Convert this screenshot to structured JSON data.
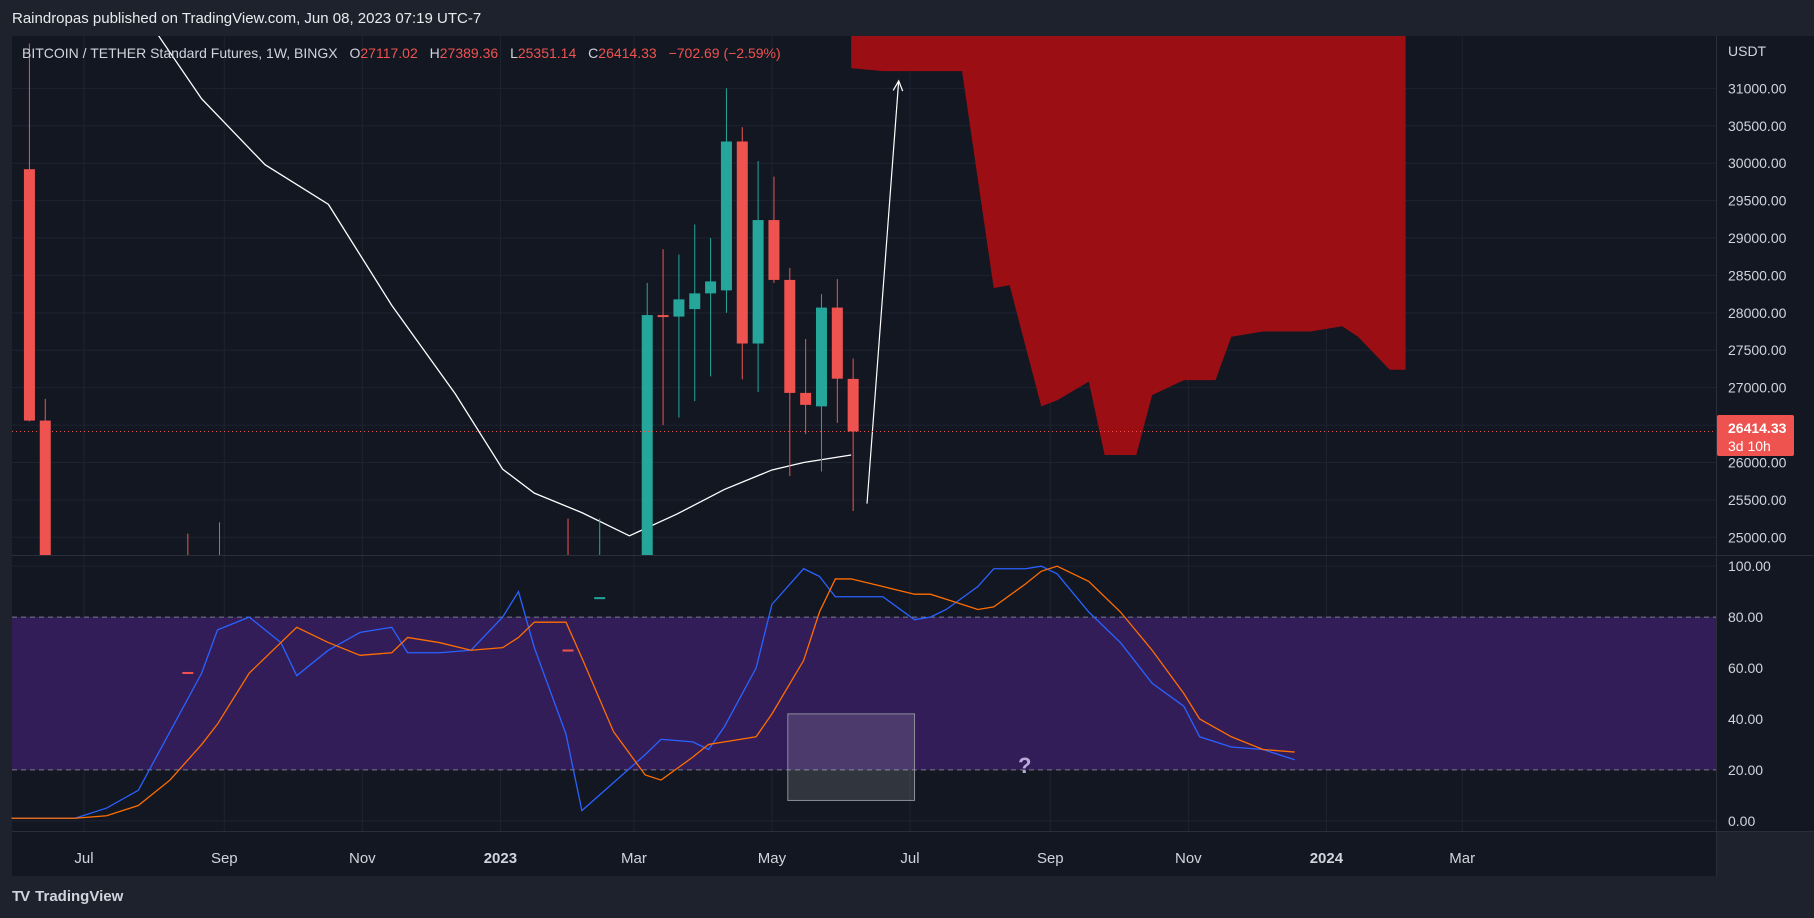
{
  "header": {
    "published": "Raindropas published on TradingView.com, Jun 08, 2023 07:19 UTC-7"
  },
  "footer": {
    "brand_logo": "TV",
    "brand": "TradingView"
  },
  "legend": {
    "symbol": "BITCOIN / TETHER Standard Futures, 1W, BINGX",
    "o_label": "O",
    "o_value": "27117.02",
    "h_label": "H",
    "h_value": "27389.36",
    "l_label": "L",
    "l_value": "25351.14",
    "c_label": "C",
    "c_value": "26414.33",
    "change": "−702.69 (−2.59%)"
  },
  "last_price": {
    "value": "26414.33",
    "countdown": "3d 10h"
  },
  "annotation": {
    "question": "?"
  },
  "colors": {
    "background": "#131722",
    "frame": "#1e222d",
    "up": "#26a69a",
    "down": "#ef5350",
    "ma": "#ffffff",
    "cloud": "#9b0e14",
    "stoch_k": "#2962ff",
    "stoch_d": "#ff6d00",
    "band_fill": "#321d58"
  },
  "chart_data": [
    {
      "type": "candlestick",
      "timeframe": "1W",
      "y_unit": "USDT",
      "ylim": [
        24750,
        31700
      ],
      "y_ticks": [
        "31000.00",
        "30500.00",
        "30000.00",
        "29500.00",
        "29000.00",
        "28500.00",
        "28000.00",
        "27500.00",
        "27000.00",
        "26500.00",
        "26000.00",
        "25500.00",
        "25000.00"
      ],
      "x_ticks": [
        "Jul",
        "Sep",
        "Nov",
        "2023",
        "Mar",
        "May",
        "Jul",
        "Sep",
        "Nov",
        "2024",
        "Mar"
      ],
      "grid": true,
      "candles": [
        {
          "date": "2022-06-06",
          "o": 29920,
          "h": 31600,
          "l": 26550,
          "c": 26560
        },
        {
          "date": "2022-06-13",
          "o": 26560,
          "h": 26850,
          "l": 17600,
          "c": 20500
        },
        {
          "date": "2022-08-15",
          "o": 23200,
          "h": 25050,
          "l": 20800,
          "c": 21400
        },
        {
          "date": "2022-08-29",
          "o": 20000,
          "h": 25200,
          "l": 19700,
          "c": 19800
        },
        {
          "date": "2023-01-30",
          "o": 23500,
          "h": 25250,
          "l": 22700,
          "c": 23000
        },
        {
          "date": "2023-02-13",
          "o": 22000,
          "h": 25250,
          "l": 21500,
          "c": 24200
        },
        {
          "date": "2023-03-06",
          "o": 22500,
          "h": 28400,
          "l": 20000,
          "c": 27970
        },
        {
          "date": "2023-03-13",
          "o": 27970,
          "h": 28850,
          "l": 26500,
          "c": 27950
        },
        {
          "date": "2023-03-20",
          "o": 27950,
          "h": 28780,
          "l": 26600,
          "c": 28180
        },
        {
          "date": "2023-03-27",
          "o": 28050,
          "h": 29180,
          "l": 26820,
          "c": 28260
        },
        {
          "date": "2023-04-03",
          "o": 28260,
          "h": 29000,
          "l": 27150,
          "c": 28420
        },
        {
          "date": "2023-04-10",
          "o": 28300,
          "h": 31000,
          "l": 28000,
          "c": 30290
        },
        {
          "date": "2023-04-17",
          "o": 30290,
          "h": 30480,
          "l": 27110,
          "c": 27590
        },
        {
          "date": "2023-04-24",
          "o": 27590,
          "h": 30030,
          "l": 26940,
          "c": 29240
        },
        {
          "date": "2023-05-01",
          "o": 29240,
          "h": 29820,
          "l": 28400,
          "c": 28440
        },
        {
          "date": "2023-05-08",
          "o": 28440,
          "h": 28600,
          "l": 25820,
          "c": 26930
        },
        {
          "date": "2023-05-15",
          "o": 26930,
          "h": 27650,
          "l": 26380,
          "c": 26770
        },
        {
          "date": "2023-05-22",
          "o": 26750,
          "h": 28250,
          "l": 25880,
          "c": 28070
        },
        {
          "date": "2023-05-29",
          "o": 28070,
          "h": 28450,
          "l": 26530,
          "c": 27120
        },
        {
          "date": "2023-06-05",
          "o": 27117.02,
          "h": 27389.36,
          "l": 25351.14,
          "c": 26414.33
        }
      ],
      "moving_average": [
        {
          "date": "2022-06-27",
          "v": 33600
        },
        {
          "date": "2022-07-25",
          "v": 32100
        },
        {
          "date": "2022-08-22",
          "v": 30860
        },
        {
          "date": "2022-09-19",
          "v": 29980
        },
        {
          "date": "2022-10-17",
          "v": 29450
        },
        {
          "date": "2022-11-14",
          "v": 28100
        },
        {
          "date": "2022-12-12",
          "v": 26920
        },
        {
          "date": "2023-01-02",
          "v": 25910
        },
        {
          "date": "2023-01-16",
          "v": 25590
        },
        {
          "date": "2023-02-06",
          "v": 25330
        },
        {
          "date": "2023-02-27",
          "v": 25020
        },
        {
          "date": "2023-03-20",
          "v": 25310
        },
        {
          "date": "2023-04-10",
          "v": 25640
        },
        {
          "date": "2023-05-01",
          "v": 25900
        },
        {
          "date": "2023-05-15",
          "v": 26000
        },
        {
          "date": "2023-06-05",
          "v": 26100
        }
      ],
      "cloud": [
        {
          "date": "2023-06-05",
          "top": 31700,
          "bottom": 31270
        },
        {
          "date": "2023-06-19",
          "top": 31700,
          "bottom": 31230
        },
        {
          "date": "2023-07-24",
          "top": 31700,
          "bottom": 31230
        },
        {
          "date": "2023-08-07",
          "top": 31700,
          "bottom": 28330
        },
        {
          "date": "2023-08-14",
          "top": 31700,
          "bottom": 28370
        },
        {
          "date": "2023-08-28",
          "top": 31700,
          "bottom": 26750
        },
        {
          "date": "2023-09-04",
          "top": 31700,
          "bottom": 26830
        },
        {
          "date": "2023-09-18",
          "top": 31700,
          "bottom": 27080
        },
        {
          "date": "2023-09-25",
          "top": 31700,
          "bottom": 26100
        },
        {
          "date": "2023-10-09",
          "top": 31700,
          "bottom": 26100
        },
        {
          "date": "2023-10-16",
          "top": 31700,
          "bottom": 26900
        },
        {
          "date": "2023-10-30",
          "top": 31700,
          "bottom": 27100
        },
        {
          "date": "2023-11-13",
          "top": 31700,
          "bottom": 27100
        },
        {
          "date": "2023-11-20",
          "top": 31700,
          "bottom": 27680
        },
        {
          "date": "2023-12-04",
          "top": 31700,
          "bottom": 27750
        },
        {
          "date": "2023-12-25",
          "top": 31700,
          "bottom": 27750
        },
        {
          "date": "2024-01-08",
          "top": 31700,
          "bottom": 27820
        },
        {
          "date": "2024-01-15",
          "top": 31700,
          "bottom": 27680
        },
        {
          "date": "2024-01-29",
          "top": 31700,
          "bottom": 27240
        },
        {
          "date": "2024-02-05",
          "top": 31700,
          "bottom": 27240
        }
      ],
      "projection_arrow": [
        {
          "date": "2023-06-12",
          "v": 25450
        },
        {
          "date": "2023-06-26",
          "v": 31100
        }
      ]
    },
    {
      "type": "line",
      "title": "",
      "ylim": [
        -4,
        104
      ],
      "y_ticks": [
        "100.00",
        "80.00",
        "60.00",
        "40.00",
        "20.00",
        "0.00"
      ],
      "band": [
        20,
        80
      ],
      "series": [
        {
          "values": [
            [
              "2022-05-30",
              1
            ],
            [
              "2022-06-27",
              1
            ],
            [
              "2022-07-11",
              5
            ],
            [
              "2022-07-25",
              12
            ],
            [
              "2022-08-08",
              35
            ],
            [
              "2022-08-22",
              58
            ],
            [
              "2022-08-29",
              75
            ],
            [
              "2022-09-12",
              80
            ],
            [
              "2022-09-26",
              70
            ],
            [
              "2022-10-03",
              57
            ],
            [
              "2022-10-17",
              67
            ],
            [
              "2022-10-31",
              74
            ],
            [
              "2022-11-14",
              76
            ],
            [
              "2022-11-21",
              66
            ],
            [
              "2022-12-05",
              66
            ],
            [
              "2022-12-19",
              67
            ],
            [
              "2023-01-02",
              80
            ],
            [
              "2023-01-09",
              90
            ],
            [
              "2023-01-16",
              68
            ],
            [
              "2023-01-30",
              34
            ],
            [
              "2023-02-06",
              4
            ],
            [
              "2023-02-20",
              15
            ],
            [
              "2023-03-06",
              26
            ],
            [
              "2023-03-13",
              32
            ],
            [
              "2023-03-27",
              31
            ],
            [
              "2023-04-03",
              28
            ],
            [
              "2023-04-10",
              37
            ],
            [
              "2023-04-24",
              60
            ],
            [
              "2023-05-01",
              85
            ],
            [
              "2023-05-15",
              99
            ],
            [
              "2023-05-22",
              96
            ],
            [
              "2023-05-29",
              88
            ],
            [
              "2023-06-05",
              88
            ],
            [
              "2023-06-19",
              88
            ],
            [
              "2023-07-03",
              79
            ],
            [
              "2023-07-10",
              80
            ],
            [
              "2023-07-17",
              83
            ],
            [
              "2023-07-31",
              92
            ],
            [
              "2023-08-07",
              99
            ],
            [
              "2023-08-21",
              99
            ],
            [
              "2023-08-28",
              100
            ],
            [
              "2023-09-04",
              97
            ],
            [
              "2023-09-18",
              82
            ],
            [
              "2023-10-02",
              70
            ],
            [
              "2023-10-16",
              54
            ],
            [
              "2023-10-30",
              45
            ],
            [
              "2023-11-06",
              33
            ],
            [
              "2023-11-20",
              29
            ],
            [
              "2023-12-04",
              28
            ],
            [
              "2023-12-18",
              24
            ]
          ]
        },
        {
          "values": [
            [
              "2022-05-30",
              1
            ],
            [
              "2022-06-27",
              1
            ],
            [
              "2022-07-11",
              2
            ],
            [
              "2022-07-25",
              6
            ],
            [
              "2022-08-08",
              16
            ],
            [
              "2022-08-22",
              30
            ],
            [
              "2022-08-29",
              38
            ],
            [
              "2022-09-12",
              58
            ],
            [
              "2022-09-26",
              70
            ],
            [
              "2022-10-03",
              76
            ],
            [
              "2022-10-17",
              70
            ],
            [
              "2022-10-31",
              65
            ],
            [
              "2022-11-14",
              66
            ],
            [
              "2022-11-21",
              72
            ],
            [
              "2022-12-05",
              70
            ],
            [
              "2022-12-19",
              67
            ],
            [
              "2023-01-02",
              68
            ],
            [
              "2023-01-09",
              72
            ],
            [
              "2023-01-16",
              78
            ],
            [
              "2023-01-30",
              78
            ],
            [
              "2023-02-06",
              64
            ],
            [
              "2023-02-20",
              35
            ],
            [
              "2023-03-06",
              18
            ],
            [
              "2023-03-13",
              16
            ],
            [
              "2023-03-27",
              25
            ],
            [
              "2023-04-03",
              30
            ],
            [
              "2023-04-10",
              31
            ],
            [
              "2023-04-24",
              33
            ],
            [
              "2023-05-01",
              42
            ],
            [
              "2023-05-15",
              63
            ],
            [
              "2023-05-22",
              82
            ],
            [
              "2023-05-29",
              95
            ],
            [
              "2023-06-05",
              95
            ],
            [
              "2023-06-19",
              92
            ],
            [
              "2023-07-03",
              89
            ],
            [
              "2023-07-10",
              89
            ],
            [
              "2023-07-17",
              87
            ],
            [
              "2023-07-31",
              83
            ],
            [
              "2023-08-07",
              84
            ],
            [
              "2023-08-21",
              93
            ],
            [
              "2023-08-28",
              98
            ],
            [
              "2023-09-04",
              100
            ],
            [
              "2023-09-18",
              94
            ],
            [
              "2023-10-02",
              82
            ],
            [
              "2023-10-16",
              67
            ],
            [
              "2023-10-30",
              50
            ],
            [
              "2023-11-06",
              40
            ],
            [
              "2023-11-20",
              33
            ],
            [
              "2023-12-04",
              28
            ],
            [
              "2023-12-18",
              27
            ]
          ]
        }
      ]
    }
  ]
}
